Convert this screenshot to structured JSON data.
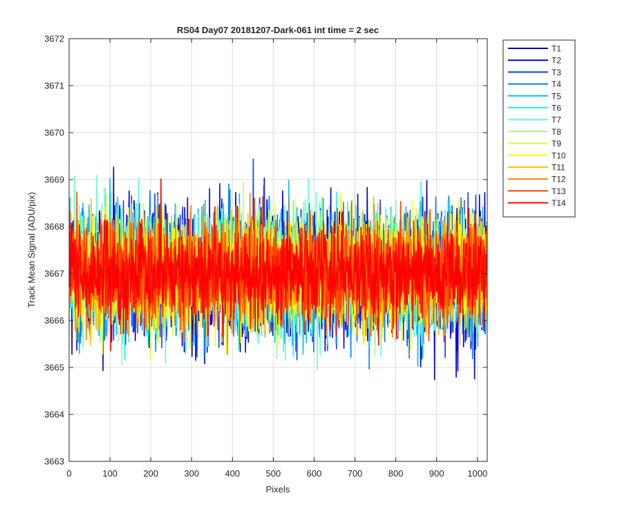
{
  "chart_data": {
    "type": "line",
    "title": "RS04 Day07 20181207-Dark-061 int time = 2 sec",
    "xlabel": "Pixels",
    "ylabel": "Track Mean Signal (ADU/pix)",
    "xlim": [
      0,
      1024
    ],
    "ylim": [
      3663,
      3672
    ],
    "xticks": [
      0,
      100,
      200,
      300,
      400,
      500,
      600,
      700,
      800,
      900,
      1000
    ],
    "yticks": [
      3663,
      3664,
      3665,
      3666,
      3667,
      3668,
      3669,
      3670,
      3671,
      3672
    ],
    "grid": true,
    "legend_position": "outside-top-right",
    "x_range": [
      1,
      1024
    ],
    "series": [
      {
        "name": "T1",
        "color": "#0000aa",
        "mean": 3667.0,
        "spread": 1.05
      },
      {
        "name": "T2",
        "color": "#0000dd",
        "mean": 3667.0,
        "spread": 1.05
      },
      {
        "name": "T3",
        "color": "#0a3fff",
        "mean": 3667.0,
        "spread": 1.05
      },
      {
        "name": "T4",
        "color": "#0080ff",
        "mean": 3667.0,
        "spread": 1.05
      },
      {
        "name": "T5",
        "color": "#00bfff",
        "mean": 3667.0,
        "spread": 1.0
      },
      {
        "name": "T6",
        "color": "#1affff",
        "mean": 3667.0,
        "spread": 1.0
      },
      {
        "name": "T7",
        "color": "#5cffd0",
        "mean": 3667.0,
        "spread": 1.0
      },
      {
        "name": "T8",
        "color": "#9cff8a",
        "mean": 3667.0,
        "spread": 0.95
      },
      {
        "name": "T9",
        "color": "#d6ff33",
        "mean": 3667.0,
        "spread": 0.95
      },
      {
        "name": "T10",
        "color": "#ffff00",
        "mean": 3667.0,
        "spread": 0.95
      },
      {
        "name": "T11",
        "color": "#ffbf00",
        "mean": 3667.0,
        "spread": 0.9
      },
      {
        "name": "T12",
        "color": "#ff8000",
        "mean": 3667.0,
        "spread": 0.9
      },
      {
        "name": "T13",
        "color": "#ff4000",
        "mean": 3667.0,
        "spread": 0.85
      },
      {
        "name": "T14",
        "color": "#ff0000",
        "mean": 3667.0,
        "spread": 0.8
      }
    ]
  }
}
